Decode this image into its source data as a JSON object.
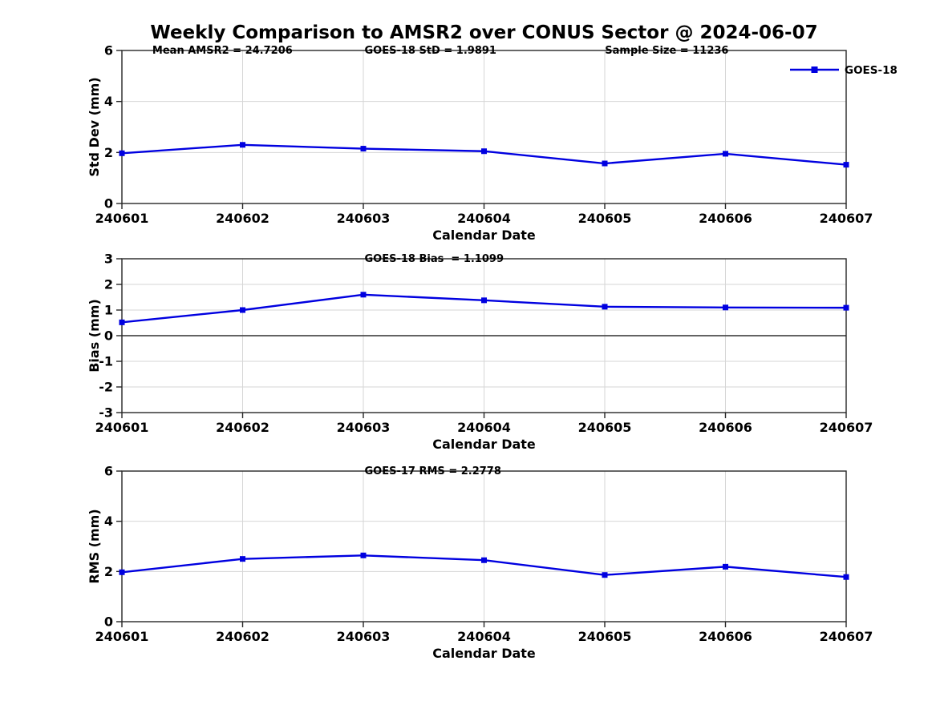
{
  "title": "Weekly Comparison to AMSR2 over CONUS Sector @ 2024-06-07",
  "series_color": "#0000e0",
  "chart_data": [
    {
      "type": "line",
      "id": "std-dev",
      "categories": [
        "240601",
        "240602",
        "240603",
        "240604",
        "240605",
        "240606",
        "240607"
      ],
      "series": [
        {
          "name": "GOES-18",
          "values": [
            1.97,
            2.3,
            2.15,
            2.05,
            1.57,
            1.95,
            1.52
          ]
        }
      ],
      "xlabel": "Calendar Date",
      "ylabel": "Std Dev (mm)",
      "ylim": [
        0,
        6
      ],
      "yticks": [
        0,
        2,
        4,
        6
      ],
      "grid": true,
      "legend": {
        "label": "GOES-18",
        "position": "top-right"
      },
      "annotations": [
        {
          "text": "Mean AMSR2 = 24.7206",
          "xfrac": 0.042
        },
        {
          "text": "GOES-18 StD = 1.9891",
          "xfrac": 0.335
        },
        {
          "text": "Sample Size = 11236",
          "xfrac": 0.667
        }
      ]
    },
    {
      "type": "line",
      "id": "bias",
      "categories": [
        "240601",
        "240602",
        "240603",
        "240604",
        "240605",
        "240606",
        "240607"
      ],
      "series": [
        {
          "name": "GOES-18",
          "values": [
            0.52,
            1.0,
            1.6,
            1.38,
            1.13,
            1.1,
            1.09
          ]
        }
      ],
      "xlabel": "Calendar Date",
      "ylabel": "Bias (mm)",
      "ylim": [
        -3,
        3
      ],
      "yticks": [
        -3,
        -2,
        -1,
        0,
        1,
        2,
        3
      ],
      "grid": true,
      "zero_line": true,
      "annotations": [
        {
          "text": "GOES-18 Bias  = 1.1099",
          "xfrac": 0.335
        }
      ]
    },
    {
      "type": "line",
      "id": "rms",
      "categories": [
        "240601",
        "240602",
        "240603",
        "240604",
        "240605",
        "240606",
        "240607"
      ],
      "series": [
        {
          "name": "GOES-18",
          "values": [
            1.97,
            2.5,
            2.64,
            2.45,
            1.86,
            2.19,
            1.78
          ]
        }
      ],
      "xlabel": "Calendar Date",
      "ylabel": "RMS (mm)",
      "ylim": [
        0,
        6
      ],
      "yticks": [
        0,
        2,
        4,
        6
      ],
      "grid": true,
      "annotations": [
        {
          "text": "GOES-17 RMS = 2.2778",
          "xfrac": 0.335
        }
      ]
    }
  ]
}
